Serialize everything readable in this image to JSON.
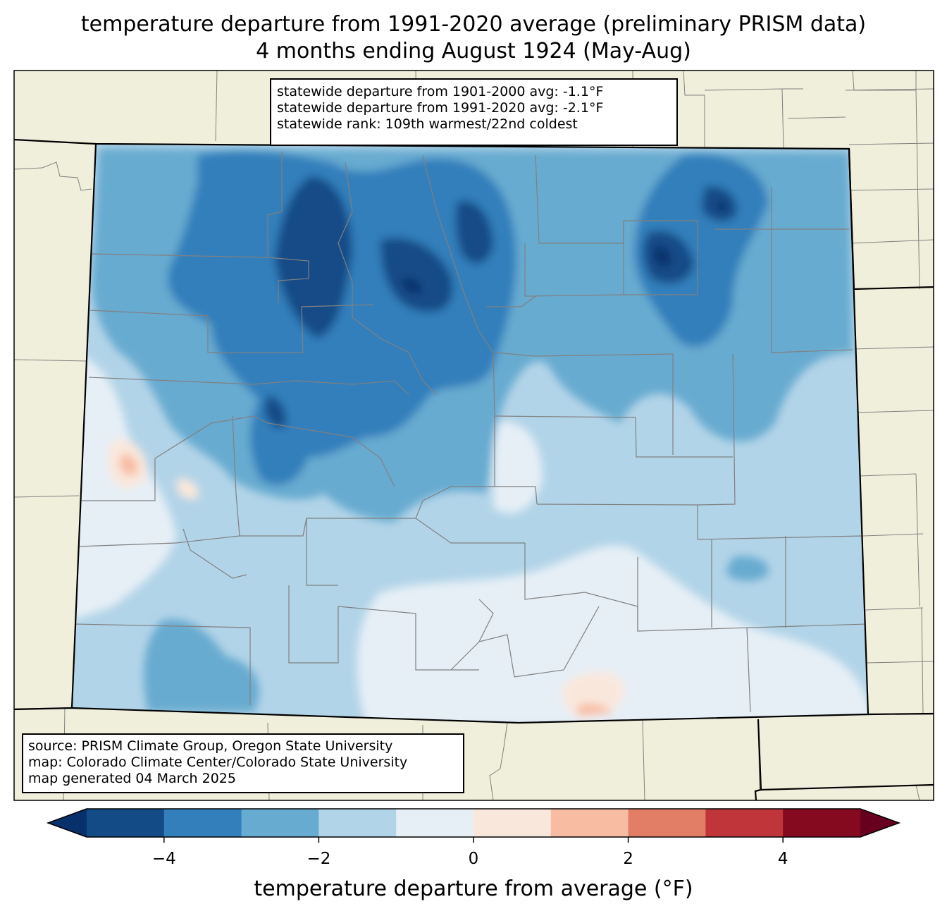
{
  "title": {
    "line1": "temperature departure from 1991-2020 average (preliminary PRISM data)",
    "line2": "4 months ending August 1924 (May-Aug)"
  },
  "stats": {
    "line1": "statewide departure from 1901-2000 avg: -1.1°F",
    "line2": "statewide departure from 1991-2020 avg: -2.1°F",
    "line3": "statewide rank: 109th warmest/22nd coldest"
  },
  "source": {
    "line1": "source: PRISM Climate Group, Oregon State University",
    "line2": "map: Colorado Climate Center/Colorado State University",
    "line3": "map generated 04 March 2025"
  },
  "colorbar": {
    "label": "temperature departure from average (°F)",
    "ticks": [
      "−4",
      "−2",
      "0",
      "2",
      "4"
    ],
    "tick_values": [
      -4,
      -2,
      0,
      2,
      4
    ],
    "range": [
      -5,
      5
    ],
    "step": 1,
    "extend": "both",
    "colors": [
      "#08306b",
      "#134b87",
      "#327fbb",
      "#68abd0",
      "#b2d4e8",
      "#e6eff6",
      "#fae7dc",
      "#f8bca2",
      "#e27e65",
      "#bf3539",
      "#860a1f",
      "#67001f"
    ]
  },
  "map_colors": {
    "background_land": "#f0efdc",
    "county_lines": "#808080",
    "state_lines": "#000000"
  }
}
